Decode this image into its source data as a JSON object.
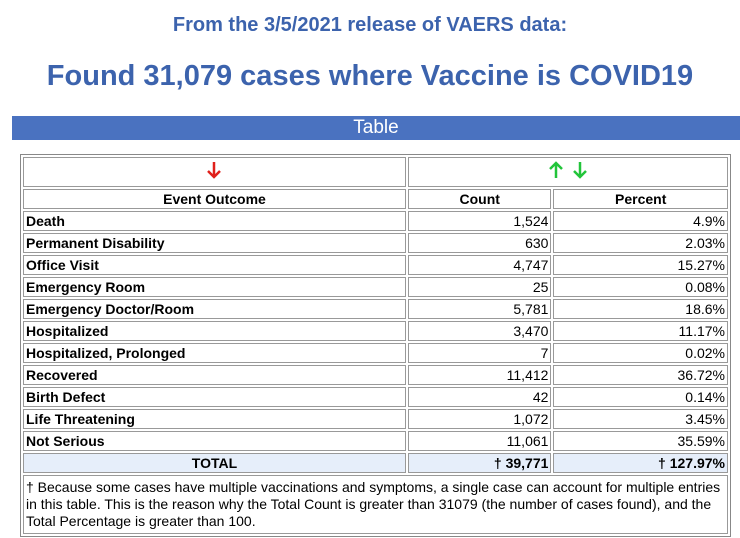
{
  "header": {
    "subtitle": "From the 3/5/2021 release of VAERS data:",
    "title": "Found 31,079 cases where Vaccine is COVID19"
  },
  "section": "Table",
  "table": {
    "columns": [
      "Event Outcome",
      "Count",
      "Percent"
    ],
    "rows": [
      [
        "Death",
        "1,524",
        "4.9%"
      ],
      [
        "Permanent Disability",
        "630",
        "2.03%"
      ],
      [
        "Office Visit",
        "4,747",
        "15.27%"
      ],
      [
        "Emergency Room",
        "25",
        "0.08%"
      ],
      [
        "Emergency Doctor/Room",
        "5,781",
        "18.6%"
      ],
      [
        "Hospitalized",
        "3,470",
        "11.17%"
      ],
      [
        "Hospitalized, Prolonged",
        "7",
        "0.02%"
      ],
      [
        "Recovered",
        "11,412",
        "36.72%"
      ],
      [
        "Birth Defect",
        "42",
        "0.14%"
      ],
      [
        "Life Threatening",
        "1,072",
        "3.45%"
      ],
      [
        "Not Serious",
        "11,061",
        "35.59%"
      ]
    ],
    "total": [
      "TOTAL",
      "† 39,771",
      "† 127.97%"
    ],
    "footnote": "† Because some cases have multiple vaccinations and symptoms, a single case can account for multiple entries in this table. This is the reason why the Total Count is greater than 31079 (the number of cases found), and the Total Percentage is greater than 100."
  }
}
